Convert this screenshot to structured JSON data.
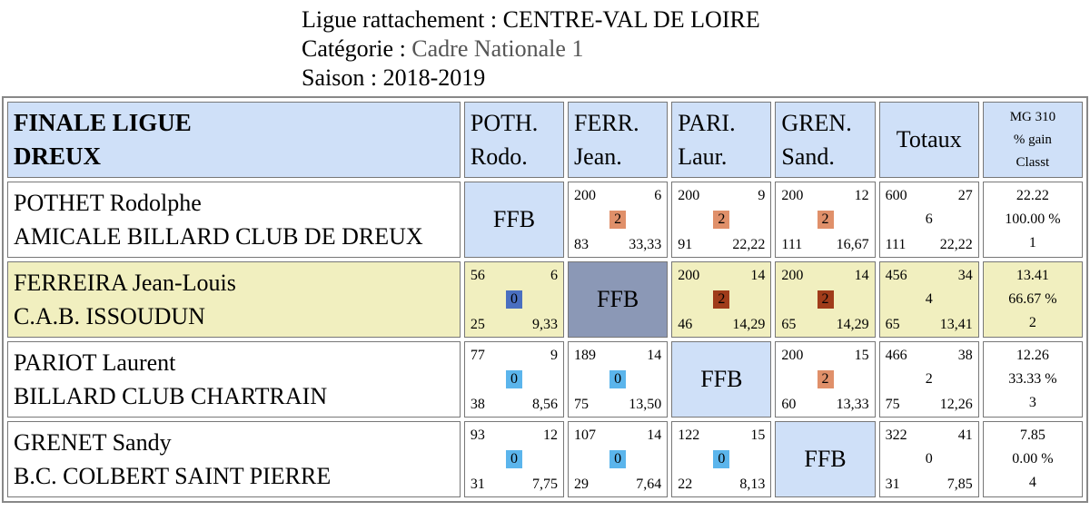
{
  "header": {
    "ligue_label": "Ligue rattachement :",
    "ligue_value": "CENTRE-VAL DE LOIRE",
    "cat_label": "Catégorie :",
    "cat_value": "Cadre Nationale 1",
    "saison_label": "Saison :",
    "saison_value": "2018-2019"
  },
  "table": {
    "title_line1": "FINALE LIGUE",
    "title_line2": "DREUX",
    "columns": [
      {
        "line1": "POTH.",
        "line2": "Rodo."
      },
      {
        "line1": "FERR.",
        "line2": "Jean."
      },
      {
        "line1": "PARI.",
        "line2": "Laur."
      },
      {
        "line1": "GREN.",
        "line2": "Sand."
      }
    ],
    "totals_label": "Totaux",
    "mg_line1": "MG 310",
    "mg_line2": "% gain",
    "mg_line3": "Classt",
    "self_label": "FFB",
    "colors": {
      "header_bg": "#cfe0f8",
      "highlight_row_bg": "#f1efbf",
      "highlight_self_bg": "#8b98b6",
      "win_pts_bg": "#e0906a",
      "win_pts_bg_highlight": "#a03c1a",
      "loss_pts_bg": "#5bb5ec",
      "loss_pts_bg_highlight": "#4a6fc0"
    },
    "rows": [
      {
        "name": "POTHET Rodolphe",
        "club": "AMICALE BILLARD CLUB DE DREUX",
        "matches": [
          null,
          {
            "points": "200",
            "innings": "6",
            "pts": "2",
            "opp": "83",
            "avg": "33,33"
          },
          {
            "points": "200",
            "innings": "9",
            "pts": "2",
            "opp": "91",
            "avg": "22,22"
          },
          {
            "points": "200",
            "innings": "12",
            "pts": "2",
            "opp": "111",
            "avg": "16,67"
          }
        ],
        "totals": {
          "points": "600",
          "innings": "27",
          "pts": "6",
          "opp": "111",
          "avg": "22,22"
        },
        "summary": {
          "mg": "22.22",
          "pct": "100.00 %",
          "rank": "1"
        }
      },
      {
        "name": "FERREIRA Jean-Louis",
        "club": "C.A.B. ISSOUDUN",
        "matches": [
          {
            "points": "56",
            "innings": "6",
            "pts": "0",
            "opp": "25",
            "avg": "9,33"
          },
          null,
          {
            "points": "200",
            "innings": "14",
            "pts": "2",
            "opp": "46",
            "avg": "14,29"
          },
          {
            "points": "200",
            "innings": "14",
            "pts": "2",
            "opp": "65",
            "avg": "14,29"
          }
        ],
        "totals": {
          "points": "456",
          "innings": "34",
          "pts": "4",
          "opp": "65",
          "avg": "13,41"
        },
        "summary": {
          "mg": "13.41",
          "pct": "66.67 %",
          "rank": "2"
        }
      },
      {
        "name": "PARIOT Laurent",
        "club": "BILLARD CLUB CHARTRAIN",
        "matches": [
          {
            "points": "77",
            "innings": "9",
            "pts": "0",
            "opp": "38",
            "avg": "8,56"
          },
          {
            "points": "189",
            "innings": "14",
            "pts": "0",
            "opp": "75",
            "avg": "13,50"
          },
          null,
          {
            "points": "200",
            "innings": "15",
            "pts": "2",
            "opp": "60",
            "avg": "13,33"
          }
        ],
        "totals": {
          "points": "466",
          "innings": "38",
          "pts": "2",
          "opp": "75",
          "avg": "12,26"
        },
        "summary": {
          "mg": "12.26",
          "pct": "33.33 %",
          "rank": "3"
        }
      },
      {
        "name": "GRENET Sandy",
        "club": "B.C. COLBERT SAINT PIERRE",
        "matches": [
          {
            "points": "93",
            "innings": "12",
            "pts": "0",
            "opp": "31",
            "avg": "7,75"
          },
          {
            "points": "107",
            "innings": "14",
            "pts": "0",
            "opp": "29",
            "avg": "7,64"
          },
          {
            "points": "122",
            "innings": "15",
            "pts": "0",
            "opp": "22",
            "avg": "8,13"
          },
          null
        ],
        "totals": {
          "points": "322",
          "innings": "41",
          "pts": "0",
          "opp": "31",
          "avg": "7,85"
        },
        "summary": {
          "mg": "7.85",
          "pct": "0.00 %",
          "rank": "4"
        }
      }
    ]
  }
}
